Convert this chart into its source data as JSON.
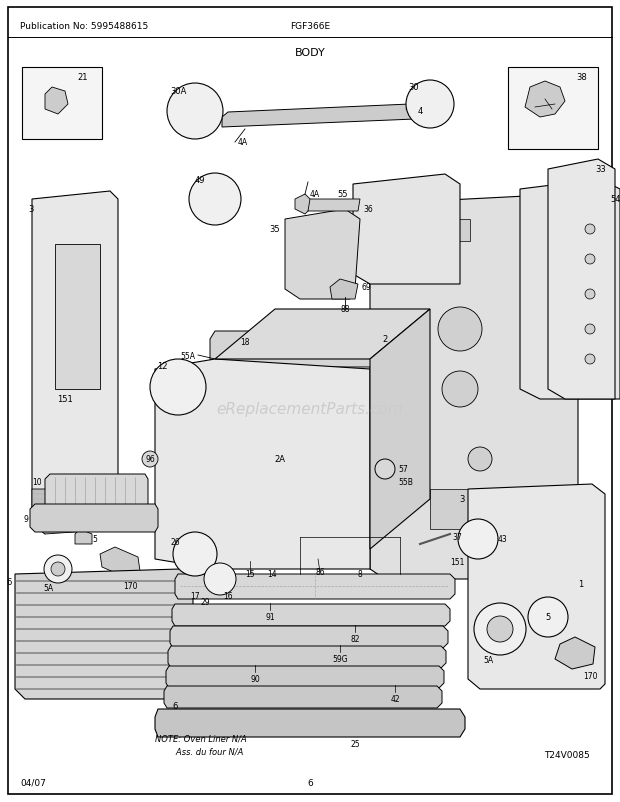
{
  "pub_no": "Publication No: 5995488615",
  "model": "FGF366E",
  "title": "BODY",
  "date": "04/07",
  "page": "6",
  "diagram_code": "T24V0085",
  "watermark": "eReplacementParts.com",
  "note_line1": "NOTE: Oven Liner N/A",
  "note_line2": "        Ass. du four N/A",
  "bg_color": "#ffffff",
  "border_color": "#000000",
  "text_color": "#000000",
  "fig_width": 6.2,
  "fig_height": 8.03,
  "dpi": 100
}
